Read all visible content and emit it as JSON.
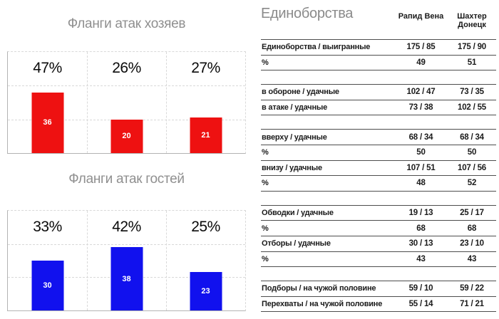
{
  "chart_data": [
    {
      "type": "bar",
      "title": "Фланги атак хозяев",
      "values": [
        36,
        20,
        21
      ],
      "percent_labels": [
        "47%",
        "26%",
        "27%"
      ],
      "bar_color": "#ee1111",
      "value_label_color": "#ffffff",
      "ylim": [
        0,
        60
      ],
      "grid": "dashed, gridlines every 20",
      "x_tick_labels": [
        "",
        "",
        ""
      ],
      "xlabel": "",
      "ylabel": ""
    },
    {
      "type": "bar",
      "title": "Фланги атак гостей",
      "values": [
        30,
        38,
        23
      ],
      "percent_labels": [
        "33%",
        "42%",
        "25%"
      ],
      "bar_color": "#1111ee",
      "value_label_color": "#ffffff",
      "ylim": [
        0,
        60
      ],
      "grid": "dashed, gridlines every 20",
      "x_tick_labels": [
        "",
        "",
        ""
      ],
      "xlabel": "",
      "ylabel": ""
    },
    {
      "type": "table",
      "title": "Единоборства",
      "columns": [
        "Рапид Вена",
        "Шахтер Донецк"
      ],
      "groups": [
        {
          "rows": [
            {
              "label": "Единоборства / выигранные",
              "values": [
                "175 / 85",
                "175 / 90"
              ]
            },
            {
              "label": "%",
              "values": [
                "49",
                "51"
              ]
            }
          ]
        },
        {
          "rows": [
            {
              "label": "в обороне / удачные",
              "values": [
                "102 / 47",
                "73 / 35"
              ]
            },
            {
              "label": "в атаке / удачные",
              "values": [
                "73 / 38",
                "102 / 55"
              ]
            }
          ]
        },
        {
          "rows": [
            {
              "label": "вверху / удачные",
              "values": [
                "68 / 34",
                "68 / 34"
              ]
            },
            {
              "label": "%",
              "values": [
                "50",
                "50"
              ]
            },
            {
              "label": "внизу / удачные",
              "values": [
                "107 / 51",
                "107 / 56"
              ]
            },
            {
              "label": "%",
              "values": [
                "48",
                "52"
              ]
            }
          ]
        },
        {
          "rows": [
            {
              "label": "Обводки / удачные",
              "values": [
                "19 / 13",
                "25 / 17"
              ]
            },
            {
              "label": "%",
              "values": [
                "68",
                "68"
              ]
            },
            {
              "label": "Отборы / удачные",
              "values": [
                "30 / 13",
                "23 / 10"
              ]
            },
            {
              "label": "%",
              "values": [
                "43",
                "43"
              ]
            }
          ]
        },
        {
          "rows": [
            {
              "label": "Подборы / на чужой половине",
              "values": [
                "59 / 10",
                "59 / 22"
              ]
            },
            {
              "label": "Перехваты / на чужой половине",
              "values": [
                "55 / 14",
                "71 / 21"
              ]
            }
          ]
        }
      ]
    }
  ],
  "colors": {
    "home_accent": "#ee1111",
    "away_accent": "#1111ee",
    "chart_title": "#8f8f8f",
    "table_rule": "#4d4d4d"
  }
}
